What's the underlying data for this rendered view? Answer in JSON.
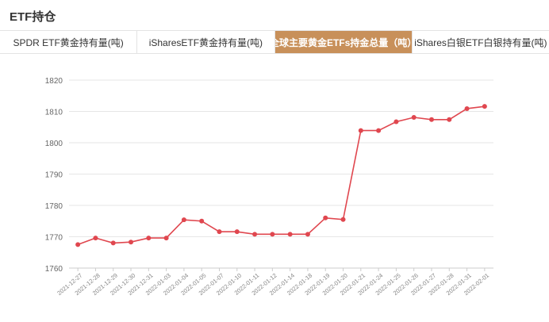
{
  "page": {
    "title": "ETF持仓"
  },
  "tabs": [
    {
      "label": "SPDR ETF黄金持有量(吨)",
      "active": false
    },
    {
      "label": "iSharesETF黄金持有量(吨)",
      "active": false
    },
    {
      "label": "全球主要黄金ETFs持金总量（吨）",
      "active": true
    },
    {
      "label": "iShares白银ETF白银持有量(吨)",
      "active": false
    }
  ],
  "colors": {
    "accent": "#c8905a",
    "series": "#e0474f",
    "grid": "#e6e6e6",
    "tick_text": "#666666"
  },
  "chart_data": {
    "type": "line",
    "title": "",
    "xlabel": "",
    "ylabel": "",
    "ylim": [
      1760,
      1820
    ],
    "yticks": [
      1760,
      1770,
      1780,
      1790,
      1800,
      1810,
      1820
    ],
    "grid": true,
    "x": [
      "2021-12-27",
      "2021-12-28",
      "2021-12-29",
      "2021-12-30",
      "2021-12-31",
      "2022-01-03",
      "2022-01-04",
      "2022-01-05",
      "2022-01-07",
      "2022-01-10",
      "2022-01-11",
      "2022-01-12",
      "2022-01-14",
      "2022-01-18",
      "2022-01-19",
      "2022-01-20",
      "2022-01-21",
      "2022-01-24",
      "2022-01-25",
      "2022-01-26",
      "2022-01-27",
      "2022-01-28",
      "2022-01-31",
      "2022-02-01"
    ],
    "series": [
      {
        "values": [
          1767.5,
          1769.6,
          1768.0,
          1768.3,
          1769.6,
          1769.6,
          1775.4,
          1775.0,
          1771.6,
          1771.6,
          1770.8,
          1770.8,
          1770.8,
          1770.8,
          1776.0,
          1775.5,
          1803.9,
          1803.9,
          1806.7,
          1808.1,
          1807.4,
          1807.4,
          1810.9,
          1811.6
        ]
      }
    ]
  }
}
